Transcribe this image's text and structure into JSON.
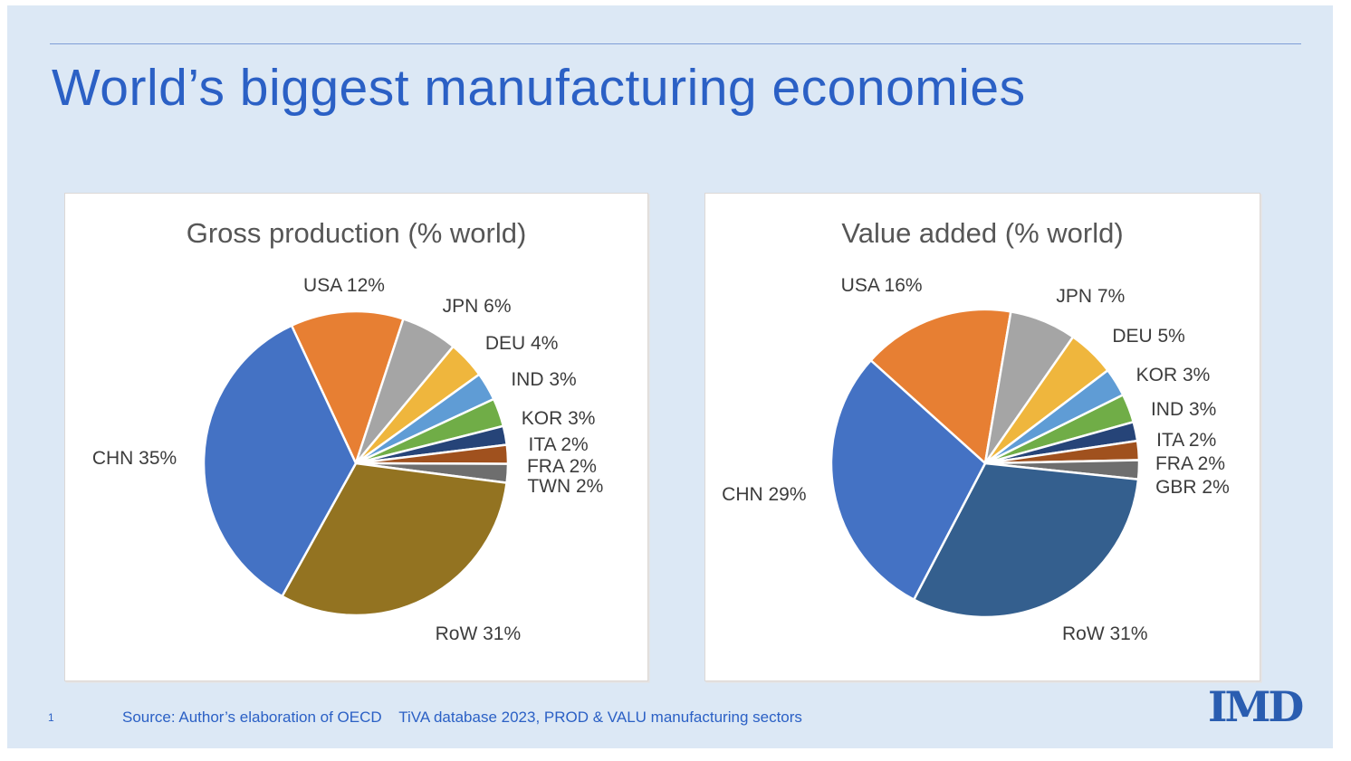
{
  "slide": {
    "title": "World’s biggest manufacturing economies",
    "page_number": "1",
    "source_text": "Source: Author’s elaboration of OECD    TiVA database 2023, PROD & VALU manufacturing sectors",
    "logo_text": "IMD",
    "colors": {
      "slide_background": "#DCE8F5",
      "title_text": "#2B60C5",
      "rule": "#7F9ED6",
      "panel_background": "#FFFFFF",
      "panel_border": "#DCD8D6",
      "chart_title_text": "#565656",
      "slice_label_text": "#3C3C3C",
      "footer_text": "#2B60C5",
      "logo_text": "#2A5DB0"
    }
  },
  "chart_data": [
    {
      "type": "pie",
      "title": "Gross production  (% world)",
      "legend": "none",
      "label_style": "outside, category name + percent",
      "start_angle_deg": -25,
      "center": {
        "x_pct": 49.9,
        "y_pct": 55.4
      },
      "radius_px": 168,
      "slices": [
        {
          "category": "USA",
          "value_pct": 12,
          "label": "USA 12%",
          "color": "#E77F33",
          "label_x_pct": 47.9,
          "label_y_pct": 19.0
        },
        {
          "category": "JPN",
          "value_pct": 6,
          "label": "JPN 6%",
          "color": "#A5A5A5",
          "label_x_pct": 70.7,
          "label_y_pct": 23.3
        },
        {
          "category": "DEU",
          "value_pct": 4,
          "label": "DEU 4%",
          "color": "#EFB63D",
          "label_x_pct": 78.4,
          "label_y_pct": 30.9
        },
        {
          "category": "IND",
          "value_pct": 3,
          "label": "IND 3%",
          "color": "#5F9CD5",
          "label_x_pct": 82.2,
          "label_y_pct": 38.3
        },
        {
          "category": "KOR",
          "value_pct": 3,
          "label": "KOR 3%",
          "color": "#70AD47",
          "label_x_pct": 84.7,
          "label_y_pct": 46.3
        },
        {
          "category": "ITA",
          "value_pct": 2,
          "label": "ITA 2%",
          "color": "#264478",
          "label_x_pct": 84.7,
          "label_y_pct": 51.7
        },
        {
          "category": "FRA",
          "value_pct": 2,
          "label": "FRA 2%",
          "color": "#A0511E",
          "label_x_pct": 85.3,
          "label_y_pct": 56.1
        },
        {
          "category": "TWN",
          "value_pct": 2,
          "label": "TWN 2%",
          "color": "#6E6E6E",
          "label_x_pct": 85.9,
          "label_y_pct": 60.2
        },
        {
          "category": "RoW",
          "value_pct": 31,
          "label": "RoW 31%",
          "color": "#937321",
          "label_x_pct": 70.9,
          "label_y_pct": 90.6
        },
        {
          "category": "CHN",
          "value_pct": 35,
          "label": "CHN 35%",
          "color": "#4472C4",
          "label_x_pct": 11.9,
          "label_y_pct": 54.4
        }
      ]
    },
    {
      "type": "pie",
      "title": "Value added (% world)",
      "legend": "none",
      "label_style": "outside, category name + percent",
      "start_angle_deg": -48,
      "center": {
        "x_pct": 50.5,
        "y_pct": 55.4
      },
      "radius_px": 170,
      "slices": [
        {
          "category": "USA",
          "value_pct": 16,
          "label": "USA 16%",
          "color": "#E77F33",
          "label_x_pct": 31.8,
          "label_y_pct": 19.0
        },
        {
          "category": "JPN",
          "value_pct": 7,
          "label": "JPN 7%",
          "color": "#A5A5A5",
          "label_x_pct": 69.5,
          "label_y_pct": 21.1
        },
        {
          "category": "DEU",
          "value_pct": 5,
          "label": "DEU 5%",
          "color": "#EFB63D",
          "label_x_pct": 80.0,
          "label_y_pct": 29.3
        },
        {
          "category": "KOR",
          "value_pct": 3,
          "label": "KOR 3%",
          "color": "#5F9CD5",
          "label_x_pct": 84.4,
          "label_y_pct": 37.4
        },
        {
          "category": "IND",
          "value_pct": 3,
          "label": "IND 3%",
          "color": "#70AD47",
          "label_x_pct": 86.3,
          "label_y_pct": 44.4
        },
        {
          "category": "ITA",
          "value_pct": 2,
          "label": "ITA 2%",
          "color": "#264478",
          "label_x_pct": 86.8,
          "label_y_pct": 50.7
        },
        {
          "category": "FRA",
          "value_pct": 2,
          "label": "FRA 2%",
          "color": "#A0511E",
          "label_x_pct": 87.5,
          "label_y_pct": 55.6
        },
        {
          "category": "GBR",
          "value_pct": 2,
          "label": "GBR 2%",
          "color": "#6E6E6E",
          "label_x_pct": 87.9,
          "label_y_pct": 60.4
        },
        {
          "category": "RoW",
          "value_pct": 31,
          "label": "RoW 31%",
          "color": "#345F8E",
          "label_x_pct": 72.1,
          "label_y_pct": 90.6
        },
        {
          "category": "CHN",
          "value_pct": 29,
          "label": "CHN 29%",
          "color": "#4472C4",
          "label_x_pct": 10.6,
          "label_y_pct": 61.9
        }
      ]
    }
  ]
}
